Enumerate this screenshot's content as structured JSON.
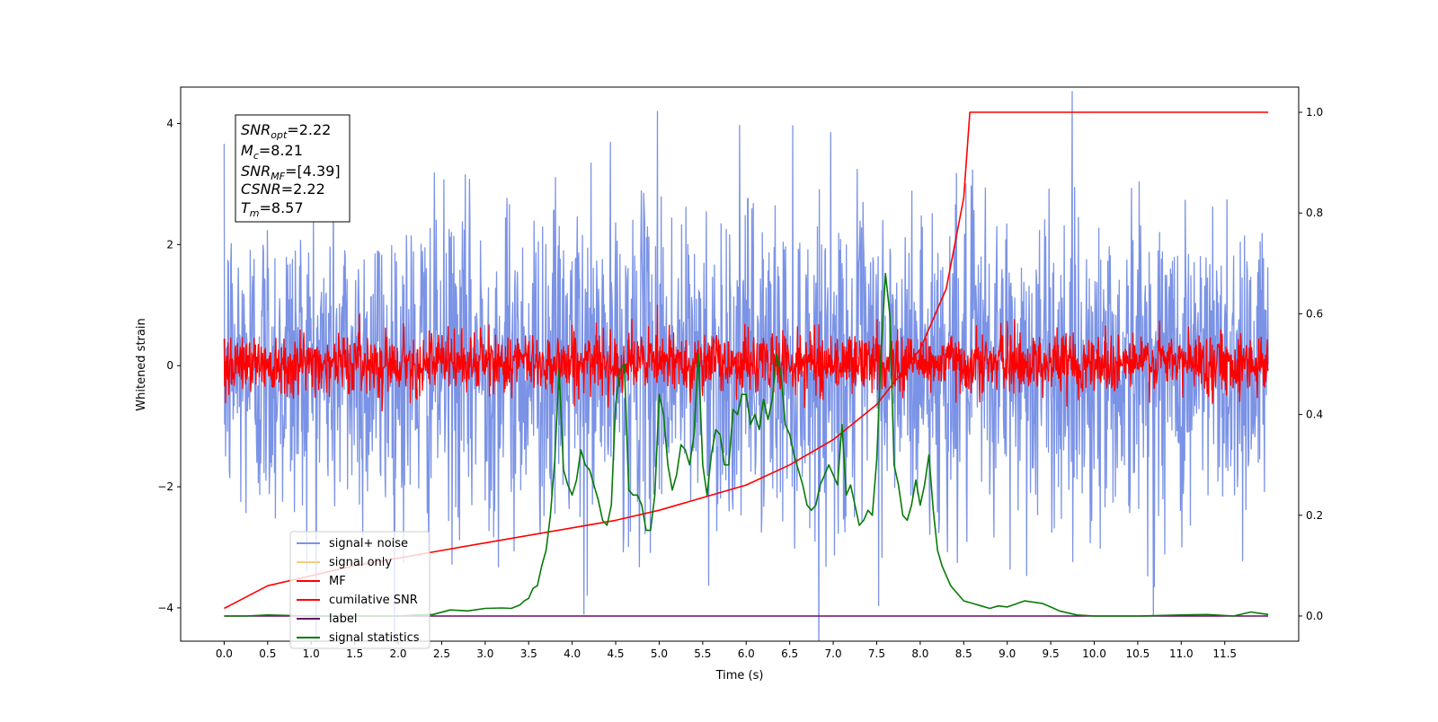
{
  "chart_data": {
    "type": "line",
    "title": "",
    "xlabel": "Time (s)",
    "ylabel": "Whitened strain",
    "y2label": "",
    "xlim": [
      -0.5,
      12.35
    ],
    "ylim": [
      -4.55,
      4.6
    ],
    "y2lim": [
      -0.05,
      1.05
    ],
    "x_ticks": [
      "0.0",
      "0.5",
      "1.0",
      "1.5",
      "2.0",
      "2.5",
      "3.0",
      "3.5",
      "4.0",
      "4.5",
      "5.0",
      "5.5",
      "6.0",
      "6.5",
      "7.0",
      "7.5",
      "8.0",
      "8.5",
      "9.0",
      "9.5",
      "10.0",
      "10.5",
      "11.0",
      "11.5"
    ],
    "y_ticks": [
      "4",
      "2",
      "0",
      "−2",
      "−4"
    ],
    "y2_ticks": [
      "1.0",
      "0.8",
      "0.6",
      "0.4",
      "0.2",
      "0.0"
    ],
    "grid": false,
    "legend_position": "lower-left",
    "legend": [
      {
        "label": "signal+ noise",
        "color": "#7b93e6"
      },
      {
        "label": "signal only",
        "color": "#f7ce7a"
      },
      {
        "label": "MF",
        "color": "#ff0000"
      },
      {
        "label": "cumilative SNR",
        "color": "#ff0000"
      },
      {
        "label": "label",
        "color": "#6a0d6a"
      },
      {
        "label": "signal statistics",
        "color": "#087a08"
      }
    ],
    "annotation": {
      "snr_opt_sym": "SNR",
      "snr_opt_sub": "opt",
      "snr_opt_val": "=2.22",
      "mc_sym": "M",
      "mc_sub": "c",
      "mc_val": "=8.21",
      "snr_mf_sym": "SNR",
      "snr_mf_sub": "MF",
      "snr_mf_val": "=[4.39]",
      "csnr_sym": "CSNR",
      "csnr_val": "=2.22",
      "tm_sym": "T",
      "tm_sub": "m",
      "tm_val": "=8.57"
    },
    "series": [
      {
        "name": "signal+ noise",
        "axis": "left",
        "color": "#7b93e6",
        "style": "noise",
        "x_range": [
          0.0,
          12.0
        ],
        "envelope_typical": [
          -2.4,
          2.4
        ],
        "extreme_peaks": [
          4.2,
          -4.1
        ]
      },
      {
        "name": "MF",
        "axis": "left",
        "color": "#ff0000",
        "style": "noise",
        "x_range": [
          0.0,
          12.0
        ],
        "envelope_typical": [
          -0.4,
          0.5
        ],
        "extreme_peaks": [
          1.0,
          -0.45
        ]
      },
      {
        "name": "cumilative SNR",
        "axis": "right",
        "color": "#ff0000",
        "x": [
          0.0,
          0.5,
          1.0,
          1.5,
          2.0,
          2.5,
          3.0,
          3.5,
          4.0,
          4.5,
          5.0,
          5.5,
          6.0,
          6.5,
          7.0,
          7.5,
          8.0,
          8.3,
          8.5,
          8.57,
          9.0,
          9.5,
          10.0,
          10.5,
          11.0,
          11.5,
          12.0
        ],
        "y": [
          0.015,
          0.06,
          0.08,
          0.1,
          0.115,
          0.13,
          0.145,
          0.16,
          0.175,
          0.19,
          0.21,
          0.235,
          0.26,
          0.3,
          0.35,
          0.42,
          0.53,
          0.65,
          0.83,
          1.0,
          1.0,
          1.0,
          1.0,
          1.0,
          1.0,
          1.0,
          1.0
        ]
      },
      {
        "name": "label",
        "axis": "right",
        "color": "#6a0d6a",
        "x": [
          0.0,
          12.0
        ],
        "y": [
          0.0,
          0.0
        ]
      },
      {
        "name": "signal statistics",
        "axis": "right",
        "color": "#087a08",
        "x": [
          0.0,
          0.25,
          0.5,
          1.0,
          1.5,
          2.0,
          2.2,
          2.4,
          2.6,
          2.8,
          3.0,
          3.2,
          3.3,
          3.4,
          3.45,
          3.5,
          3.55,
          3.6,
          3.65,
          3.7,
          3.75,
          3.8,
          3.85,
          3.9,
          3.95,
          4.0,
          4.05,
          4.1,
          4.15,
          4.2,
          4.25,
          4.3,
          4.35,
          4.4,
          4.45,
          4.5,
          4.55,
          4.6,
          4.65,
          4.7,
          4.75,
          4.8,
          4.85,
          4.9,
          4.95,
          5.0,
          5.05,
          5.1,
          5.15,
          5.2,
          5.25,
          5.3,
          5.35,
          5.4,
          5.45,
          5.5,
          5.55,
          5.6,
          5.65,
          5.7,
          5.75,
          5.8,
          5.85,
          5.9,
          5.95,
          6.0,
          6.05,
          6.1,
          6.15,
          6.2,
          6.25,
          6.3,
          6.35,
          6.4,
          6.45,
          6.5,
          6.55,
          6.6,
          6.65,
          6.7,
          6.75,
          6.8,
          6.85,
          6.9,
          6.95,
          7.0,
          7.05,
          7.1,
          7.15,
          7.2,
          7.25,
          7.3,
          7.35,
          7.4,
          7.45,
          7.5,
          7.55,
          7.6,
          7.65,
          7.7,
          7.75,
          7.8,
          7.85,
          7.9,
          7.95,
          8.0,
          8.05,
          8.1,
          8.15,
          8.2,
          8.25,
          8.3,
          8.35,
          8.4,
          8.5,
          8.6,
          8.7,
          8.8,
          8.9,
          9.0,
          9.2,
          9.4,
          9.5,
          9.6,
          9.8,
          10.0,
          10.5,
          11.0,
          11.3,
          11.6,
          11.8,
          12.0
        ],
        "y": [
          0.0,
          0.0,
          0.002,
          0.0,
          0.0,
          0.0,
          0.002,
          0.003,
          0.012,
          0.01,
          0.015,
          0.016,
          0.015,
          0.022,
          0.03,
          0.035,
          0.055,
          0.06,
          0.1,
          0.13,
          0.2,
          0.31,
          0.49,
          0.29,
          0.26,
          0.24,
          0.27,
          0.33,
          0.3,
          0.29,
          0.26,
          0.23,
          0.19,
          0.18,
          0.22,
          0.42,
          0.49,
          0.5,
          0.25,
          0.24,
          0.24,
          0.22,
          0.17,
          0.17,
          0.24,
          0.44,
          0.4,
          0.3,
          0.25,
          0.28,
          0.34,
          0.33,
          0.3,
          0.36,
          0.52,
          0.3,
          0.24,
          0.32,
          0.37,
          0.36,
          0.3,
          0.3,
          0.41,
          0.4,
          0.44,
          0.44,
          0.38,
          0.4,
          0.37,
          0.43,
          0.39,
          0.43,
          0.52,
          0.48,
          0.38,
          0.36,
          0.32,
          0.29,
          0.26,
          0.22,
          0.21,
          0.22,
          0.26,
          0.28,
          0.3,
          0.28,
          0.26,
          0.38,
          0.24,
          0.26,
          0.22,
          0.18,
          0.19,
          0.21,
          0.2,
          0.31,
          0.52,
          0.68,
          0.6,
          0.3,
          0.26,
          0.2,
          0.19,
          0.22,
          0.27,
          0.22,
          0.26,
          0.32,
          0.21,
          0.13,
          0.1,
          0.08,
          0.06,
          0.05,
          0.03,
          0.025,
          0.02,
          0.015,
          0.02,
          0.018,
          0.03,
          0.025,
          0.018,
          0.01,
          0.002,
          0.0,
          0.0,
          0.002,
          0.003,
          0.0,
          0.008,
          0.003
        ]
      }
    ]
  }
}
